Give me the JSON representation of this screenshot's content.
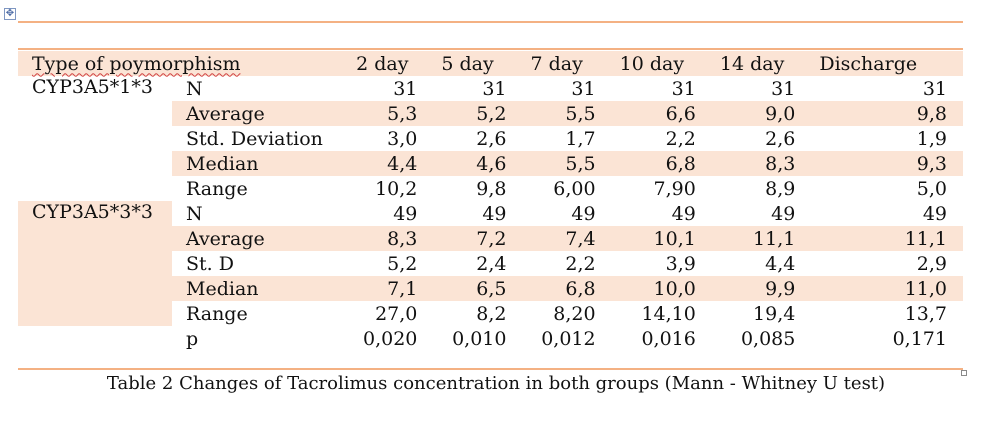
{
  "table": {
    "header": {
      "type_label": "Type of poymorphism",
      "days": [
        "2 day",
        "5 day",
        "7 day",
        "10 day",
        "14 day",
        "Discharge"
      ]
    },
    "groups": [
      {
        "name": "CYP3A5*1*3",
        "rows": [
          {
            "stat": "N",
            "values": [
              "31",
              "31",
              "31",
              "31",
              "31",
              "31"
            ]
          },
          {
            "stat": "Average",
            "values": [
              "5,3",
              "5,2",
              "5,5",
              "6,6",
              "9,0",
              "9,8"
            ]
          },
          {
            "stat": "Std. Deviation",
            "values": [
              "3,0",
              "2,6",
              "1,7",
              "2,2",
              "2,6",
              "1,9"
            ]
          },
          {
            "stat": "Median",
            "values": [
              "4,4",
              "4,6",
              "5,5",
              "6,8",
              "8,3",
              "9,3"
            ]
          },
          {
            "stat": "Range",
            "values": [
              "10,2",
              "9,8",
              "6,00",
              "7,90",
              "8,9",
              "5,0"
            ]
          }
        ]
      },
      {
        "name": "CYP3A5*3*3",
        "rows": [
          {
            "stat": "N",
            "values": [
              "49",
              "49",
              "49",
              "49",
              "49",
              "49"
            ]
          },
          {
            "stat": "Average",
            "values": [
              "8,3",
              "7,2",
              "7,4",
              "10,1",
              "11,1",
              "11,1"
            ]
          },
          {
            "stat": "St. D",
            "values": [
              "5,2",
              "2,4",
              "2,2",
              "3,9",
              "4,4",
              "2,9"
            ]
          },
          {
            "stat": "Median",
            "values": [
              "7,1",
              "6,5",
              "6,8",
              "10,0",
              "9,9",
              "11,0"
            ]
          },
          {
            "stat": "Range",
            "values": [
              "27,0",
              "8,2",
              "8,20",
              "14,10",
              "19,4",
              "13,7"
            ]
          }
        ]
      }
    ],
    "p_row": {
      "stat": "p",
      "values": [
        "0,020",
        "0,010",
        "0,012",
        "0,016",
        "0,085",
        "0,171"
      ]
    }
  },
  "caption": "Table 2 Changes of Tacrolimus concentration in both groups (Mann - Whitney U test)",
  "colors": {
    "rule": "#f4b183",
    "shade": "#fbe4d5"
  }
}
